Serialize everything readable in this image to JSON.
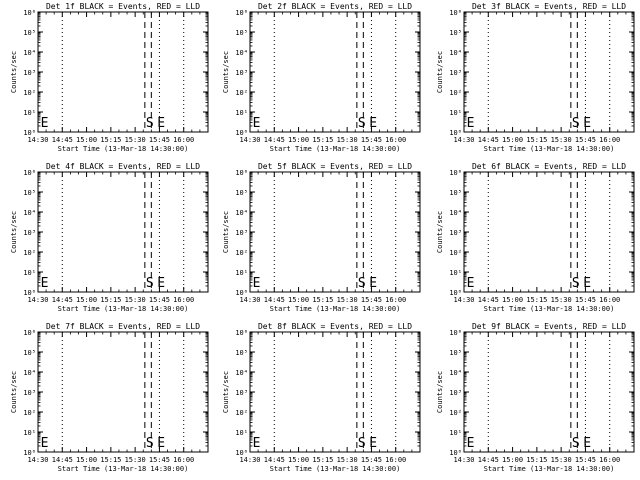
{
  "chart_data": [
    {
      "type": "line",
      "title": "Det 1f BLACK = Events, RED = LLD",
      "xlabel": "Start Time (13-Mar-18 14:30:00)",
      "ylabel": "Counts/sec",
      "x_tick_labels": [
        "14:30",
        "14:45",
        "15:00",
        "15:15",
        "15:30",
        "15:45",
        "16:00"
      ],
      "y_tick_labels": [
        "10⁰",
        "10¹",
        "10²",
        "10³",
        "10⁴",
        "10⁵",
        "10⁶"
      ],
      "dotted_lines": [
        "14:30",
        "14:45",
        "15:45",
        "16:00"
      ],
      "dashed_lines": [
        "15:36",
        "15:40"
      ],
      "markers": [
        {
          "label": "E",
          "time": "14:31"
        },
        {
          "label": "S",
          "time": "15:36"
        },
        {
          "label": "E",
          "time": "15:43"
        }
      ]
    },
    {
      "type": "line",
      "title": "Det 2f BLACK = Events, RED = LLD",
      "xlabel": "Start Time (13-Mar-18 14:30:00)",
      "ylabel": "Counts/sec",
      "x_tick_labels": [
        "14:30",
        "14:45",
        "15:00",
        "15:15",
        "15:30",
        "15:45",
        "16:00"
      ],
      "y_tick_labels": [
        "10⁰",
        "10¹",
        "10²",
        "10³",
        "10⁴",
        "10⁵",
        "10⁶"
      ],
      "dotted_lines": [
        "14:30",
        "14:45",
        "15:45",
        "16:00"
      ],
      "dashed_lines": [
        "15:36",
        "15:40"
      ],
      "markers": [
        {
          "label": "E",
          "time": "14:31"
        },
        {
          "label": "S",
          "time": "15:36"
        },
        {
          "label": "E",
          "time": "15:43"
        }
      ]
    },
    {
      "type": "line",
      "title": "Det 3f BLACK = Events, RED = LLD",
      "xlabel": "Start Time (13-Mar-18 14:30:00)",
      "ylabel": "Counts/sec",
      "x_tick_labels": [
        "14:30",
        "14:45",
        "15:00",
        "15:15",
        "15:30",
        "15:45",
        "16:00"
      ],
      "y_tick_labels": [
        "10⁰",
        "10¹",
        "10²",
        "10³",
        "10⁴",
        "10⁵",
        "10⁶"
      ],
      "dotted_lines": [
        "14:30",
        "14:45",
        "15:45",
        "16:00"
      ],
      "dashed_lines": [
        "15:36",
        "15:40"
      ],
      "markers": [
        {
          "label": "E",
          "time": "14:31"
        },
        {
          "label": "S",
          "time": "15:36"
        },
        {
          "label": "E",
          "time": "15:43"
        }
      ]
    },
    {
      "type": "line",
      "title": "Det 4f BLACK = Events, RED = LLD",
      "xlabel": "Start Time (13-Mar-18 14:30:00)",
      "ylabel": "Counts/sec",
      "x_tick_labels": [
        "14:30",
        "14:45",
        "15:00",
        "15:15",
        "15:30",
        "15:45",
        "16:00"
      ],
      "y_tick_labels": [
        "10⁰",
        "10¹",
        "10²",
        "10³",
        "10⁴",
        "10⁵",
        "10⁶"
      ],
      "dotted_lines": [
        "14:30",
        "14:45",
        "15:45",
        "16:00"
      ],
      "dashed_lines": [
        "15:36",
        "15:40"
      ],
      "markers": [
        {
          "label": "E",
          "time": "14:31"
        },
        {
          "label": "S",
          "time": "15:36"
        },
        {
          "label": "E",
          "time": "15:43"
        }
      ]
    },
    {
      "type": "line",
      "title": "Det 5f BLACK = Events, RED = LLD",
      "xlabel": "Start Time (13-Mar-18 14:30:00)",
      "ylabel": "Counts/sec",
      "x_tick_labels": [
        "14:30",
        "14:45",
        "15:00",
        "15:15",
        "15:30",
        "15:45",
        "16:00"
      ],
      "y_tick_labels": [
        "10⁰",
        "10¹",
        "10²",
        "10³",
        "10⁴",
        "10⁵",
        "10⁶"
      ],
      "dotted_lines": [
        "14:30",
        "14:45",
        "15:45",
        "16:00"
      ],
      "dashed_lines": [
        "15:36",
        "15:40"
      ],
      "markers": [
        {
          "label": "E",
          "time": "14:31"
        },
        {
          "label": "S",
          "time": "15:36"
        },
        {
          "label": "E",
          "time": "15:43"
        }
      ]
    },
    {
      "type": "line",
      "title": "Det 6f BLACK = Events, RED = LLD",
      "xlabel": "Start Time (13-Mar-18 14:30:00)",
      "ylabel": "Counts/sec",
      "x_tick_labels": [
        "14:30",
        "14:45",
        "15:00",
        "15:15",
        "15:30",
        "15:45",
        "16:00"
      ],
      "y_tick_labels": [
        "10⁰",
        "10¹",
        "10²",
        "10³",
        "10⁴",
        "10⁵",
        "10⁶"
      ],
      "dotted_lines": [
        "14:30",
        "14:45",
        "15:45",
        "16:00"
      ],
      "dashed_lines": [
        "15:36",
        "15:40"
      ],
      "markers": [
        {
          "label": "E",
          "time": "14:31"
        },
        {
          "label": "S",
          "time": "15:36"
        },
        {
          "label": "E",
          "time": "15:43"
        }
      ]
    },
    {
      "type": "line",
      "title": "Det 7f BLACK = Events, RED = LLD",
      "xlabel": "Start Time (13-Mar-18 14:30:00)",
      "ylabel": "Counts/sec",
      "x_tick_labels": [
        "14:30",
        "14:45",
        "15:00",
        "15:15",
        "15:30",
        "15:45",
        "16:00"
      ],
      "y_tick_labels": [
        "10⁰",
        "10¹",
        "10²",
        "10³",
        "10⁴",
        "10⁵",
        "10⁶"
      ],
      "dotted_lines": [
        "14:30",
        "14:45",
        "15:45",
        "16:00"
      ],
      "dashed_lines": [
        "15:36",
        "15:40"
      ],
      "markers": [
        {
          "label": "E",
          "time": "14:31"
        },
        {
          "label": "S",
          "time": "15:36"
        },
        {
          "label": "E",
          "time": "15:43"
        }
      ]
    },
    {
      "type": "line",
      "title": "Det 8f BLACK = Events, RED = LLD",
      "xlabel": "Start Time (13-Mar-18 14:30:00)",
      "ylabel": "Counts/sec",
      "x_tick_labels": [
        "14:30",
        "14:45",
        "15:00",
        "15:15",
        "15:30",
        "15:45",
        "16:00"
      ],
      "y_tick_labels": [
        "10⁰",
        "10¹",
        "10²",
        "10³",
        "10⁴",
        "10⁵",
        "10⁶"
      ],
      "dotted_lines": [
        "14:30",
        "14:45",
        "15:45",
        "16:00"
      ],
      "dashed_lines": [
        "15:36",
        "15:40"
      ],
      "markers": [
        {
          "label": "E",
          "time": "14:31"
        },
        {
          "label": "S",
          "time": "15:36"
        },
        {
          "label": "E",
          "time": "15:43"
        }
      ]
    },
    {
      "type": "line",
      "title": "Det 9f BLACK = Events, RED = LLD",
      "xlabel": "Start Time (13-Mar-18 14:30:00)",
      "ylabel": "Counts/sec",
      "x_tick_labels": [
        "14:30",
        "14:45",
        "15:00",
        "15:15",
        "15:30",
        "15:45",
        "16:00"
      ],
      "y_tick_labels": [
        "10⁰",
        "10¹",
        "10²",
        "10³",
        "10⁴",
        "10⁵",
        "10⁶"
      ],
      "dotted_lines": [
        "14:30",
        "14:45",
        "15:45",
        "16:00"
      ],
      "dashed_lines": [
        "15:36",
        "15:40"
      ],
      "markers": [
        {
          "label": "E",
          "time": "14:31"
        },
        {
          "label": "S",
          "time": "15:36"
        },
        {
          "label": "E",
          "time": "15:43"
        }
      ]
    }
  ]
}
